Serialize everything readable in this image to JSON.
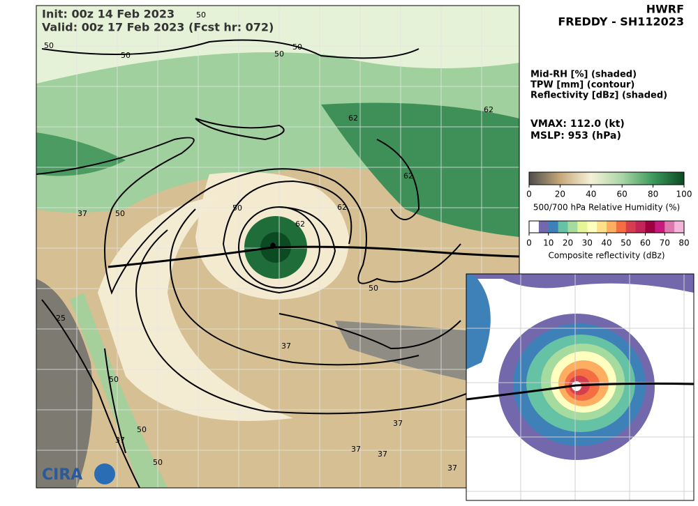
{
  "header": {
    "init": "Init:   00z 14 Feb 2023",
    "valid": "Valid: 00z 17 Feb 2023 (Fcst hr: 072)"
  },
  "title": {
    "model": "HWRF",
    "storm": "FREDDY - SH112023"
  },
  "fields": [
    "Mid-RH [%] (shaded)",
    "TPW [mm] (contour)",
    "Reflectivity [dBz] (shaded)"
  ],
  "intensity": {
    "vmax": "VMAX: 112.0 (kt)",
    "mslp": "MSLP:  953 (hPa)"
  },
  "rh_colorbar": {
    "range": [
      0,
      100
    ],
    "ticks": [
      0,
      20,
      40,
      60,
      80,
      100
    ],
    "label": "500/700 hPa Relative Humidity (%)",
    "colors": [
      "#4d4d4d",
      "#c7a878",
      "#f7f0d8",
      "#a9d6a6",
      "#3d9a5d",
      "#0b4a22"
    ]
  },
  "reflectivity_colorbar": {
    "range": [
      0,
      80
    ],
    "ticks": [
      0,
      10,
      20,
      30,
      40,
      50,
      60,
      70,
      80
    ],
    "label": "Composite reflectivity (dBz)",
    "colors": [
      "#ffffff",
      "#7468ad",
      "#3e81b9",
      "#65c2a4",
      "#a6dba0",
      "#e6f598",
      "#ffffbf",
      "#fee08b",
      "#fdae61",
      "#f46d43",
      "#d53e4f",
      "#c2255a",
      "#9e0142",
      "#c51b7d",
      "#de77ae",
      "#f1b6da"
    ]
  },
  "contour_labels": [
    "50",
    "50",
    "50",
    "50",
    "50",
    "62",
    "62",
    "62",
    "37",
    "50",
    "50",
    "62",
    "62",
    "50",
    "37",
    "25",
    "50",
    "37",
    "50",
    "50",
    "37",
    "37",
    "37",
    "37"
  ],
  "logo": {
    "text": "CIRA"
  }
}
